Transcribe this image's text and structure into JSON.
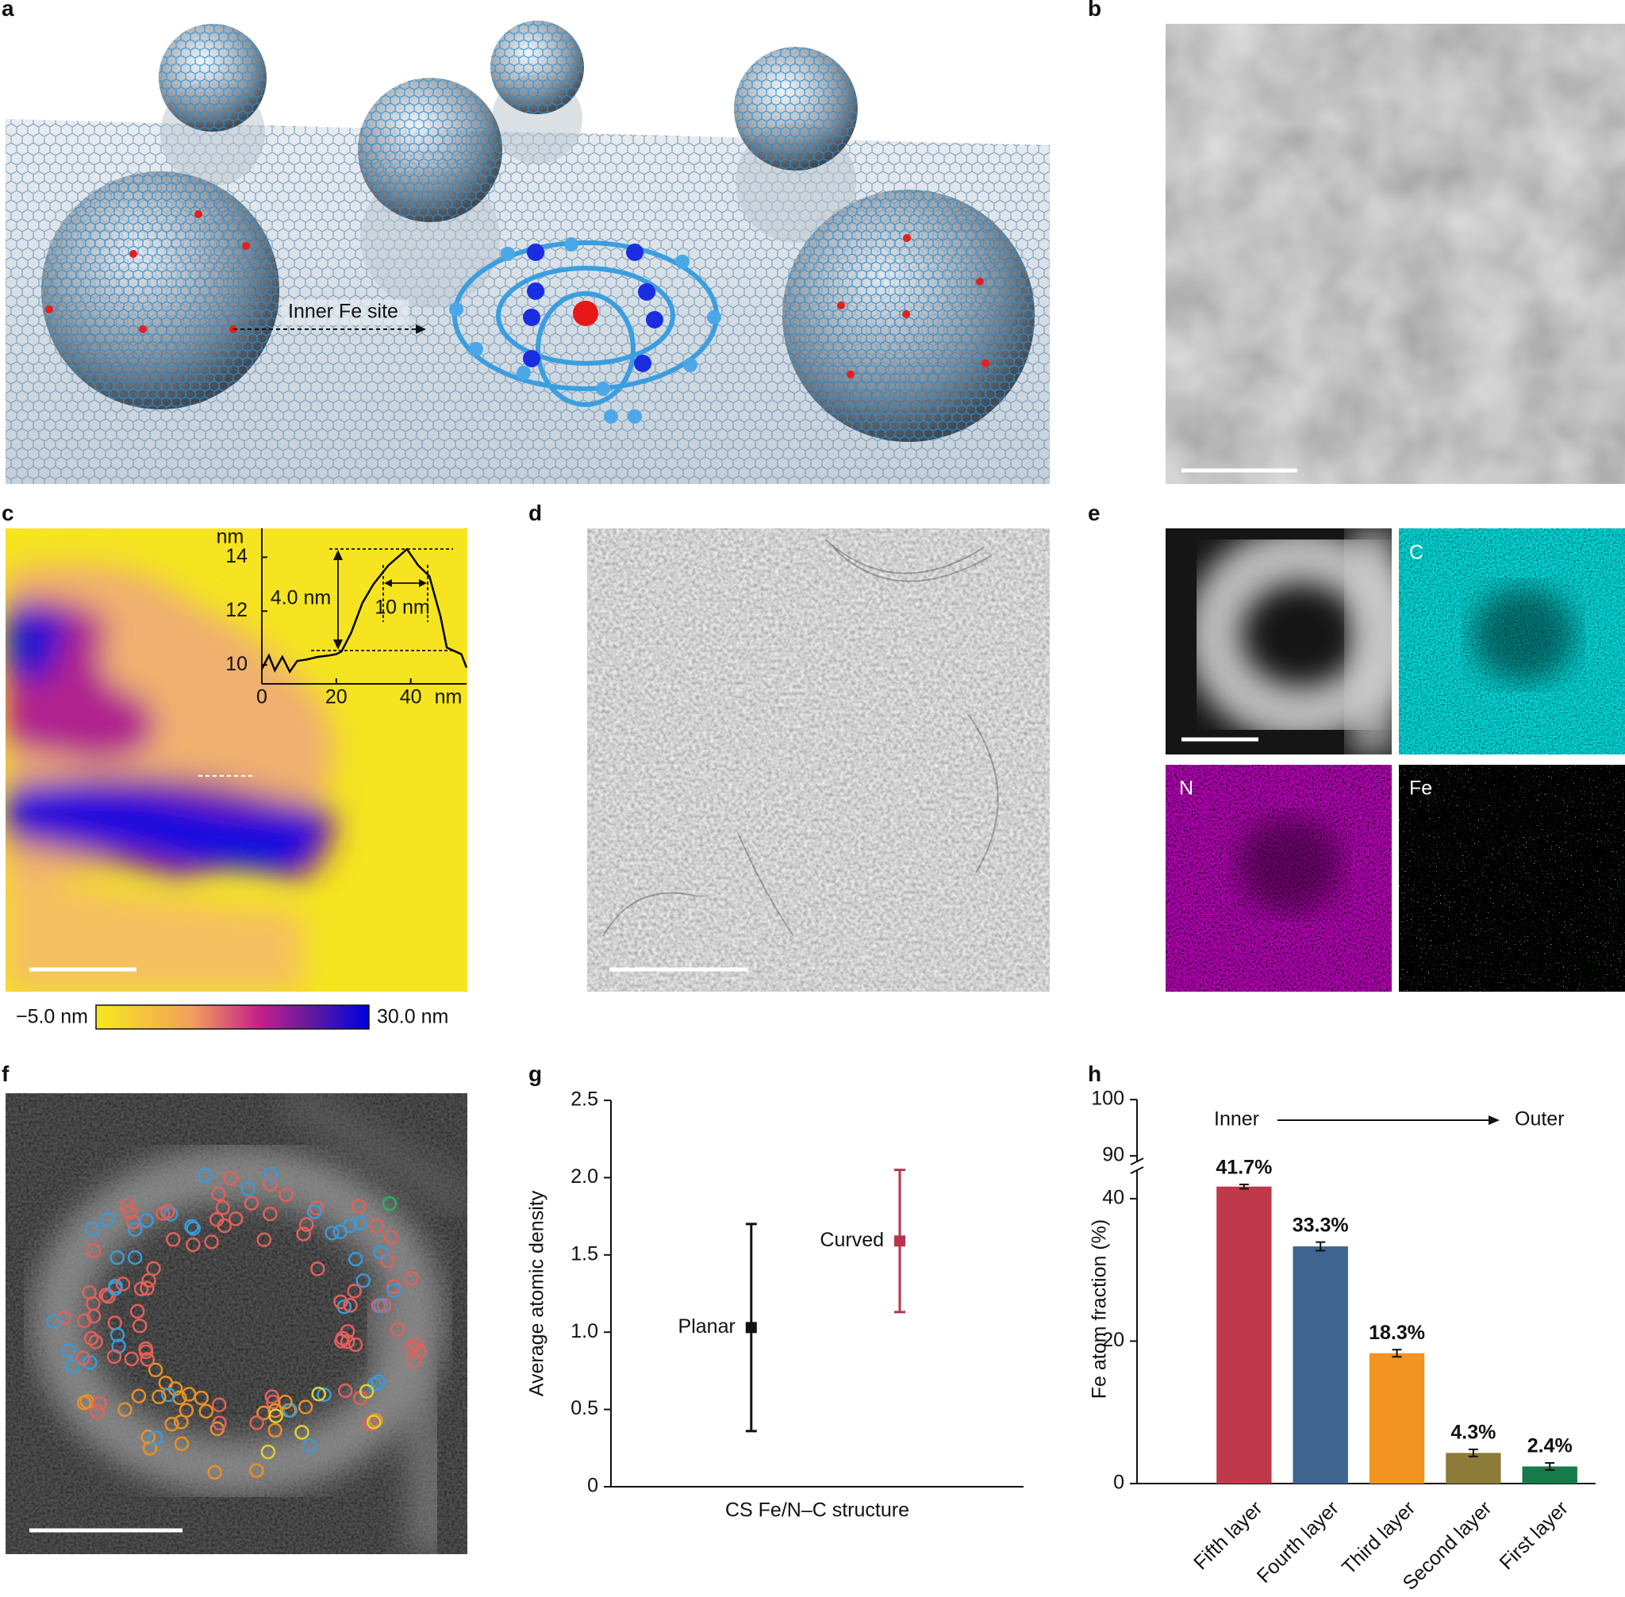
{
  "panel_labels": [
    "a",
    "b",
    "c",
    "d",
    "e",
    "f",
    "g",
    "h"
  ],
  "panel_a": {
    "annotation": "Inner Fe site"
  },
  "panel_c": {
    "colorbar_min_label": "−5.0 nm",
    "colorbar_max_label": "30.0 nm",
    "annotations": [
      "4.0 nm",
      "10 nm"
    ]
  },
  "panel_e": {
    "element_labels": [
      "C",
      "N",
      "Fe"
    ]
  },
  "chart_data": [
    {
      "type": "line",
      "xlabel": "nm",
      "ylabel": "nm",
      "x": [
        0,
        1.9,
        3.5,
        5.5,
        7.5,
        9.5,
        12,
        15,
        18,
        20,
        21.4,
        24,
        27,
        30,
        34,
        39,
        42,
        45,
        48,
        49.7,
        53.6,
        55
      ],
      "series": [
        {
          "color": "#000000",
          "values": [
            9.85,
            10.35,
            9.8,
            10.3,
            9.75,
            10.15,
            10.2,
            10.3,
            10.35,
            10.4,
            10.5,
            11.2,
            12.3,
            13.0,
            13.7,
            14.3,
            13.7,
            13.3,
            11.8,
            10.65,
            10.4,
            9.9
          ]
        }
      ],
      "xlim": [
        0,
        55
      ],
      "xticks": [
        0,
        20,
        40
      ],
      "ylim": [
        9.3,
        14.6
      ],
      "yticks": [
        10,
        12,
        14
      ]
    },
    {
      "type": "errorbar",
      "xlabel": "CS Fe/N–C structure",
      "ylabel": "Average atomic density",
      "series": [
        {
          "name": "Planar",
          "color": "#111111",
          "values": [
            1.03
          ],
          "errors": [
            0.67
          ]
        },
        {
          "name": "Curved",
          "color": "#b5364a",
          "values": [
            1.59
          ],
          "errors": [
            0.46
          ]
        }
      ],
      "ylim": [
        0,
        2.5
      ],
      "yticks": [
        0,
        0.5,
        {
          "value": 1,
          "label": "1.0"
        },
        1.5,
        {
          "value": 2,
          "label": "2.0"
        },
        2.5
      ]
    },
    {
      "type": "bar",
      "ylabel": "Fe atom fraction (%)",
      "annotations": [
        "Inner",
        "Outer"
      ],
      "categories": [
        "Fifth layer",
        "Fourth layer",
        "Third layer",
        "Second layer",
        "First layer"
      ],
      "values": [
        41.7,
        33.3,
        18.3,
        4.3,
        2.4
      ],
      "value_labels": [
        "41.7%",
        "33.3%",
        "18.3%",
        "4.3%",
        "2.4%"
      ],
      "errors": [
        0.3,
        0.6,
        0.5,
        0.5,
        0.5
      ],
      "colors": [
        "#c0394a",
        "#3f6490",
        "#f39321",
        "#8d7b3a",
        "#167a4a"
      ],
      "ylim": [
        0,
        100
      ],
      "ybreak": [
        44,
        89
      ],
      "yticks": [
        0,
        20,
        40,
        90,
        100
      ]
    }
  ]
}
